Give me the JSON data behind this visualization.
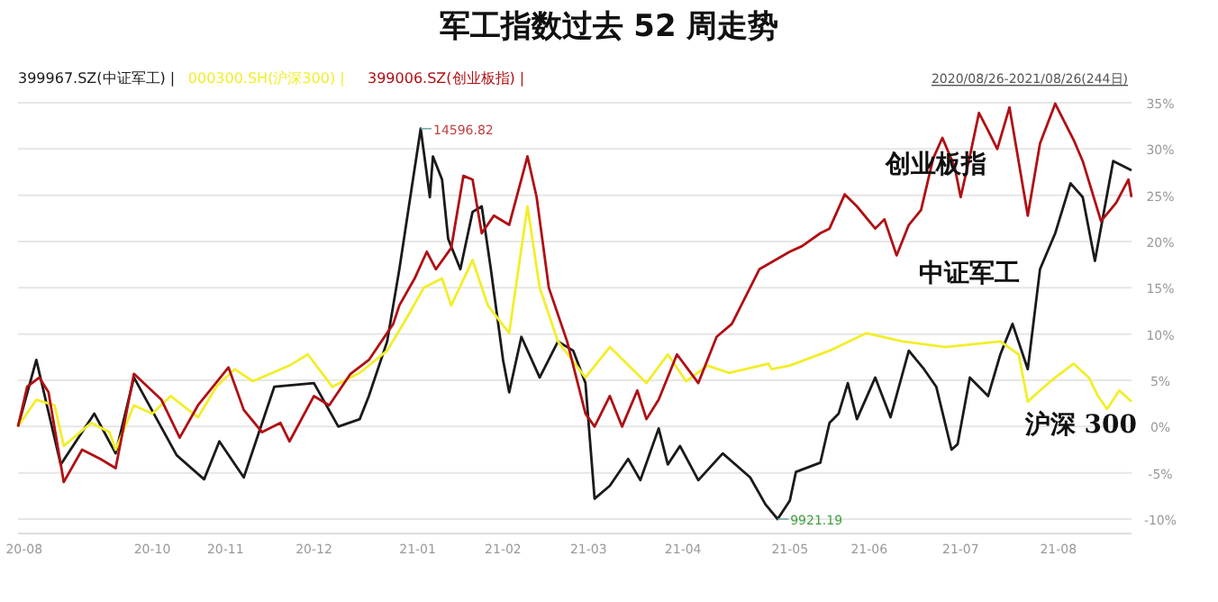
{
  "chart_data": {
    "type": "line",
    "title": "军工指数过去 52 周走势",
    "legend": "top left",
    "grid": "y",
    "marker": "none",
    "line_style": "solid",
    "xlim": [
      "2020-08-26",
      "2021-08-26"
    ],
    "xticks": [
      {
        "value": "2020-08-28",
        "label": "20-08"
      },
      {
        "value": "2020-10-09",
        "label": "20-10"
      },
      {
        "value": "2020-11-02",
        "label": "20-11"
      },
      {
        "value": "2020-12-01",
        "label": "20-12"
      },
      {
        "value": "2021-01-04",
        "label": "21-01"
      },
      {
        "value": "2021-02-01",
        "label": "21-02"
      },
      {
        "value": "2021-03-01",
        "label": "21-03"
      },
      {
        "value": "2021-04-01",
        "label": "21-04"
      },
      {
        "value": "2021-05-06",
        "label": "21-05"
      },
      {
        "value": "2021-06-01",
        "label": "21-06"
      },
      {
        "value": "2021-07-01",
        "label": "21-07"
      },
      {
        "value": "2021-08-02",
        "label": "21-08"
      }
    ],
    "ylim": [
      -10,
      35
    ],
    "yticks": [
      {
        "value": -10,
        "label": "-10%"
      },
      {
        "value": -5,
        "label": "-5%"
      },
      {
        "value": 0,
        "label": "0%"
      },
      {
        "value": 5,
        "label": "5%"
      },
      {
        "value": 10,
        "label": "10%"
      },
      {
        "value": 15,
        "label": "15%"
      },
      {
        "value": 20,
        "label": "20%"
      },
      {
        "value": 25,
        "label": "25%"
      },
      {
        "value": 30,
        "label": "30%"
      },
      {
        "value": 35,
        "label": "35%"
      }
    ],
    "series": [
      {
        "name": "399967.SZ(中证军工) |",
        "color": "#1a1a1a",
        "x": [
          "2020-08-26",
          "2020-09-01",
          "2020-09-09",
          "2020-09-20",
          "2020-09-27",
          "2020-10-03",
          "2020-10-17",
          "2020-10-26",
          "2020-10-31",
          "2020-11-08",
          "2020-11-18",
          "2020-12-01",
          "2020-12-09",
          "2020-12-16",
          "2020-12-19",
          "2020-12-25",
          "2020-12-29",
          "2021-01-02",
          "2021-01-05",
          "2021-01-08",
          "2021-01-09",
          "2021-01-12",
          "2021-01-14",
          "2021-01-18",
          "2021-01-22",
          "2021-01-25",
          "2021-01-28",
          "2021-02-01",
          "2021-02-03",
          "2021-02-07",
          "2021-02-13",
          "2021-02-19",
          "2021-02-24",
          "2021-02-28",
          "2021-03-03",
          "2021-03-08",
          "2021-03-14",
          "2021-03-18",
          "2021-03-24",
          "2021-03-27",
          "2021-03-31",
          "2021-04-06",
          "2021-04-14",
          "2021-04-23",
          "2021-04-28",
          "2021-05-02",
          "2021-05-06",
          "2021-05-08",
          "2021-05-16",
          "2021-05-19",
          "2021-05-22",
          "2021-05-25",
          "2021-05-28",
          "2021-06-03",
          "2021-06-08",
          "2021-06-14",
          "2021-06-19",
          "2021-06-23",
          "2021-06-28",
          "2021-06-30",
          "2021-07-04",
          "2021-07-10",
          "2021-07-14",
          "2021-07-18",
          "2021-07-23",
          "2021-07-27",
          "2021-08-01",
          "2021-08-06",
          "2021-08-10",
          "2021-08-14",
          "2021-08-20",
          "2021-08-26"
        ],
        "values": [
          0,
          7.2,
          -4.1,
          1.4,
          -2.9,
          5.3,
          -3.1,
          -5.7,
          -1.6,
          -5.5,
          4.3,
          4.7,
          0,
          0.8,
          3.3,
          9.2,
          17.0,
          25.7,
          32.2,
          24.8,
          29.2,
          26.7,
          20.3,
          17.0,
          23.2,
          23.8,
          17.0,
          7.2,
          3.7,
          9.7,
          5.3,
          9.2,
          8.2,
          4.7,
          -7.8,
          -6.4,
          -3.5,
          -5.8,
          -0.2,
          -4.1,
          -2.1,
          -5.8,
          -2.9,
          -5.5,
          -8.4,
          -10,
          -8.0,
          -4.9,
          -3.9,
          0.4,
          1.4,
          4.7,
          0.8,
          5.3,
          1.0,
          8.2,
          6.2,
          4.3,
          -2.5,
          -1.9,
          5.3,
          3.3,
          7.8,
          11.1,
          6.2,
          17.0,
          20.9,
          26.3,
          24.8,
          17.9,
          28.7,
          27.7
        ]
      },
      {
        "name": "000300.SH(沪深300) |",
        "color": "#f2ee2a",
        "x": [
          "2020-08-26",
          "2020-09-01",
          "2020-09-07",
          "2020-09-10",
          "2020-09-19",
          "2020-09-25",
          "2020-09-27",
          "2020-10-03",
          "2020-10-09",
          "2020-10-15",
          "2020-10-24",
          "2020-10-30",
          "2020-11-05",
          "2020-11-11",
          "2020-11-23",
          "2020-11-29",
          "2020-12-07",
          "2020-12-16",
          "2020-12-25",
          "2020-12-31",
          "2021-01-06",
          "2021-01-12",
          "2021-01-15",
          "2021-01-22",
          "2021-01-27",
          "2021-02-03",
          "2021-02-09",
          "2021-02-13",
          "2021-02-19",
          "2021-02-28",
          "2021-03-08",
          "2021-03-20",
          "2021-03-27",
          "2021-04-02",
          "2021-04-09",
          "2021-04-16",
          "2021-04-29",
          "2021-04-30",
          "2021-05-06",
          "2021-05-19",
          "2021-05-31",
          "2021-06-12",
          "2021-06-26",
          "2021-07-14",
          "2021-07-20",
          "2021-07-23",
          "2021-07-27",
          "2021-08-01",
          "2021-08-07",
          "2021-08-12",
          "2021-08-15",
          "2021-08-18",
          "2021-08-22",
          "2021-08-26"
        ],
        "values": [
          0,
          2.9,
          2.3,
          -2.1,
          0.4,
          -0.6,
          -2.5,
          2.3,
          1.4,
          3.3,
          1.0,
          4.3,
          6.2,
          4.9,
          6.6,
          7.8,
          4.3,
          5.8,
          8.2,
          11.5,
          15.0,
          16.0,
          13.1,
          18.0,
          13.1,
          10.1,
          23.8,
          15.0,
          9.2,
          5.3,
          8.6,
          4.7,
          7.8,
          4.9,
          6.6,
          5.8,
          6.8,
          6.2,
          6.6,
          8.2,
          10.1,
          9.2,
          8.6,
          9.2,
          7.8,
          2.7,
          3.9,
          5.3,
          6.8,
          5.3,
          3.3,
          1.9,
          3.9,
          2.7
        ]
      },
      {
        "name": "399006.SZ(创业板指) |",
        "color": "#b01014",
        "x": [
          "2020-08-26",
          "2020-08-29",
          "2020-09-02",
          "2020-09-05",
          "2020-09-10",
          "2020-09-16",
          "2020-09-22",
          "2020-09-27",
          "2020-10-03",
          "2020-10-12",
          "2020-10-18",
          "2020-10-24",
          "2020-11-03",
          "2020-11-08",
          "2020-11-14",
          "2020-11-20",
          "2020-11-23",
          "2020-12-01",
          "2020-12-06",
          "2020-12-13",
          "2020-12-19",
          "2020-12-27",
          "2020-12-29",
          "2021-01-03",
          "2021-01-07",
          "2021-01-10",
          "2021-01-15",
          "2021-01-19",
          "2021-01-22",
          "2021-01-25",
          "2021-01-29",
          "2021-02-03",
          "2021-02-09",
          "2021-02-12",
          "2021-02-16",
          "2021-02-22",
          "2021-02-28",
          "2021-03-03",
          "2021-03-08",
          "2021-03-12",
          "2021-03-17",
          "2021-03-20",
          "2021-03-24",
          "2021-03-30",
          "2021-04-06",
          "2021-04-12",
          "2021-04-17",
          "2021-04-26",
          "2021-05-06",
          "2021-05-10",
          "2021-05-16",
          "2021-05-19",
          "2021-05-24",
          "2021-05-28",
          "2021-06-03",
          "2021-06-06",
          "2021-06-10",
          "2021-06-14",
          "2021-06-18",
          "2021-06-22",
          "2021-06-25",
          "2021-06-29",
          "2021-07-01",
          "2021-07-04",
          "2021-07-07",
          "2021-07-10",
          "2021-07-13",
          "2021-07-17",
          "2021-07-23",
          "2021-07-27",
          "2021-08-01",
          "2021-08-07",
          "2021-08-10",
          "2021-08-16",
          "2021-08-19",
          "2021-08-21",
          "2021-08-25",
          "2021-08-26"
        ],
        "values": [
          0,
          4.3,
          5.3,
          3.7,
          -6.0,
          -2.5,
          -3.5,
          -4.5,
          5.7,
          2.9,
          -1.2,
          2.3,
          6.4,
          1.8,
          -0.6,
          0.4,
          -1.6,
          3.3,
          2.3,
          5.7,
          7.2,
          11.1,
          13.1,
          16.0,
          18.9,
          17.0,
          19.3,
          27.1,
          26.7,
          20.9,
          22.8,
          21.8,
          29.2,
          24.8,
          15.0,
          9.2,
          1.4,
          0,
          3.3,
          0,
          3.9,
          0.8,
          2.9,
          7.8,
          4.7,
          9.7,
          11.1,
          17.0,
          18.9,
          19.5,
          20.9,
          21.4,
          25.1,
          23.8,
          21.4,
          22.4,
          18.5,
          21.8,
          23.4,
          29.0,
          31.2,
          28.1,
          24.8,
          29.2,
          33.9,
          32.0,
          30.0,
          34.5,
          22.8,
          30.6,
          34.9,
          31.0,
          28.7,
          22.2,
          23.4,
          24.2,
          26.7,
          24.8
        ]
      }
    ],
    "annotations": [
      {
        "text": "14596.82",
        "x": "2021-01-05",
        "y": 32.2
      },
      {
        "text": "9921.19",
        "x": "2021-05-02",
        "y": -10
      },
      {
        "text": "创业板指",
        "x": "2021-06-23",
        "y": 26.7
      },
      "中证军工",
      "沪深 300",
      "2020/08/26-2021/08/26(244日)"
    ]
  }
}
